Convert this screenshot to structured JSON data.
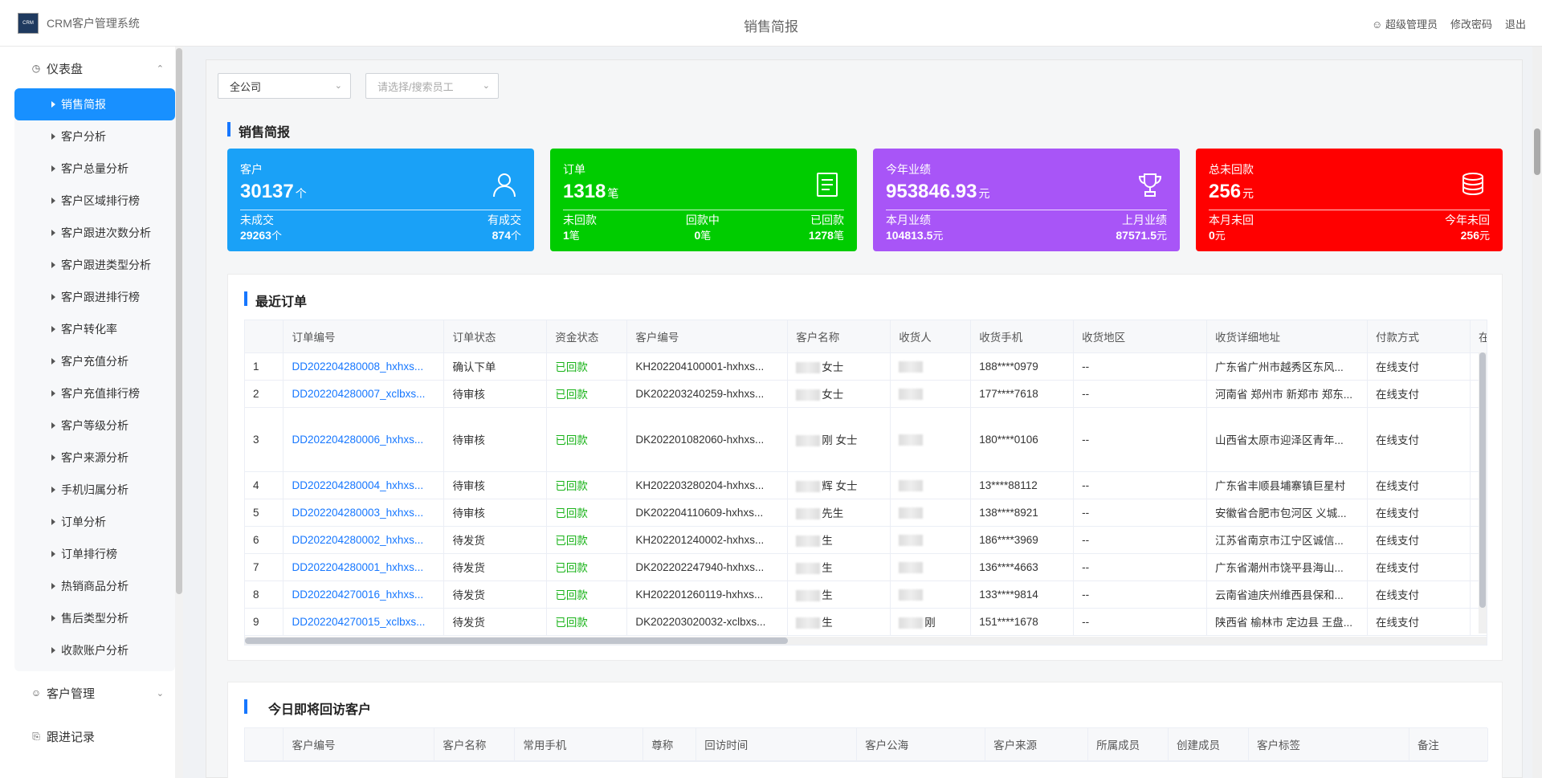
{
  "header": {
    "logo_text": "CRM",
    "app_title": "CRM客户管理系统",
    "page_title": "销售简报",
    "user": "超级管理员",
    "change_password": "修改密码",
    "logout": "退出"
  },
  "sidebar": {
    "dashboard": "仪表盘",
    "items": [
      "销售简报",
      "客户分析",
      "客户总量分析",
      "客户区域排行榜",
      "客户跟进次数分析",
      "客户跟进类型分析",
      "客户跟进排行榜",
      "客户转化率",
      "客户充值分析",
      "客户充值排行榜",
      "客户等级分析",
      "客户来源分析",
      "手机归属分析",
      "订单分析",
      "订单排行榜",
      "热销商品分析",
      "售后类型分析",
      "收款账户分析"
    ],
    "customer_mgmt": "客户管理",
    "followup": "跟进记录"
  },
  "filters": {
    "company": "全公司",
    "employee_placeholder": "请选择/搜索员工"
  },
  "section_title": "销售简报",
  "cards": {
    "customer": {
      "title": "客户",
      "value": "30137",
      "unit": "个",
      "s1_label": "未成交",
      "s1_value": "29263",
      "s1_unit": "个",
      "s2_label": "有成交",
      "s2_value": "874",
      "s2_unit": "个",
      "color": "#1aa1f7"
    },
    "order": {
      "title": "订单",
      "value": "1318",
      "unit": "笔",
      "s1_label": "未回款",
      "s1_value": "1",
      "s1_unit": "笔",
      "s2_label": "回款中",
      "s2_value": "0",
      "s2_unit": "笔",
      "s3_label": "已回款",
      "s3_value": "1278",
      "s3_unit": "笔",
      "color": "#00cc00"
    },
    "performance": {
      "title": "今年业绩",
      "value": "953846.93",
      "unit": "元",
      "s1_label": "本月业绩",
      "s1_value": "104813.5",
      "s1_unit": "元",
      "s2_label": "上月业绩",
      "s2_value": "87571.5",
      "s2_unit": "元",
      "color": "#a855f7"
    },
    "unpaid": {
      "title": "总未回款",
      "value": "256",
      "unit": "元",
      "s1_label": "本月未回",
      "s1_value": "0",
      "s1_unit": "元",
      "s2_label": "今年未回",
      "s2_value": "256",
      "s2_unit": "元",
      "color": "#ff0000"
    }
  },
  "recent_orders": {
    "title": "最近订单",
    "columns": [
      "订单编号",
      "订单状态",
      "资金状态",
      "客户编号",
      "客户名称",
      "收货人",
      "收货手机",
      "收货地区",
      "收货详细地址",
      "付款方式",
      "在"
    ],
    "rows": [
      [
        "1",
        "DD202204280008_hxhxs...",
        "确认下单",
        "已回款",
        "KH202204100001-hxhxs...",
        "女士",
        "",
        "188****0979",
        "--",
        "广东省广州市越秀区东风...",
        "在线支付"
      ],
      [
        "2",
        "DD202204280007_xclbxs...",
        "待审核",
        "已回款",
        "DK202203240259-hxhxs...",
        "女士",
        "",
        "177****7618",
        "--",
        "河南省 郑州市 新郑市 郑东...",
        "在线支付"
      ],
      [
        "3",
        "DD202204280006_hxhxs...",
        "待审核",
        "已回款",
        "DK202201082060-hxhxs...",
        "刚 女士",
        "",
        "180****0106",
        "--",
        "山西省太原市迎泽区青年...",
        "在线支付"
      ],
      [
        "4",
        "DD202204280004_hxhxs...",
        "待审核",
        "已回款",
        "KH202203280204-hxhxs...",
        "辉 女士",
        "",
        "13****88112",
        "--",
        "广东省丰顺县埔寨镇巨星村",
        "在线支付"
      ],
      [
        "5",
        "DD202204280003_hxhxs...",
        "待审核",
        "已回款",
        "DK202204110609-hxhxs...",
        "先生",
        "",
        "138****8921",
        "--",
        "安徽省合肥市包河区 义城...",
        "在线支付"
      ],
      [
        "6",
        "DD202204280002_hxhxs...",
        "待发货",
        "已回款",
        "KH202201240002-hxhxs...",
        "生",
        "",
        "186****3969",
        "--",
        "江苏省南京市江宁区诚信...",
        "在线支付"
      ],
      [
        "7",
        "DD202204280001_hxhxs...",
        "待发货",
        "已回款",
        "DK202202247940-hxhxs...",
        "生",
        "",
        "136****4663",
        "--",
        "广东省潮州市饶平县海山...",
        "在线支付"
      ],
      [
        "8",
        "DD202204270016_hxhxs...",
        "待发货",
        "已回款",
        "KH202201260119-hxhxs...",
        "生",
        "",
        "133****9814",
        "--",
        "云南省迪庆州维西县保和...",
        "在线支付"
      ],
      [
        "9",
        "DD202204270015_xclbxs...",
        "待发货",
        "已回款",
        "DK202203020032-xclbxs...",
        "生",
        "刚",
        "151****1678",
        "--",
        "陕西省 榆林市 定边县 王盘...",
        "在线支付"
      ]
    ]
  },
  "revisit": {
    "title": "今日即将回访客户",
    "columns": [
      "客户编号",
      "客户名称",
      "常用手机",
      "尊称",
      "回访时间",
      "客户公海",
      "客户来源",
      "所属成员",
      "创建成员",
      "客户标签",
      "备注"
    ]
  }
}
